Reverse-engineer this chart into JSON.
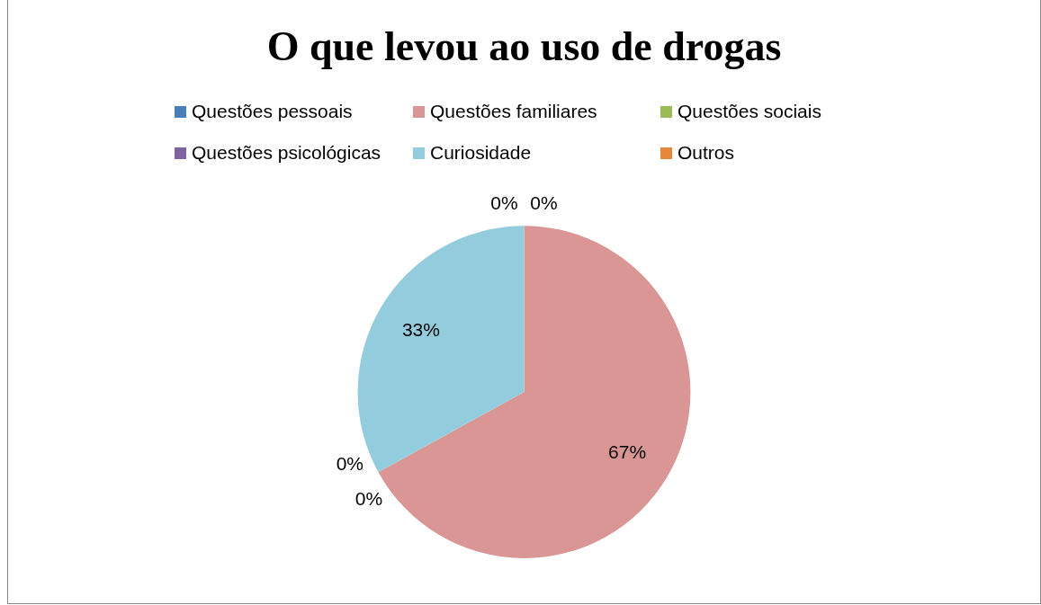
{
  "chart_data": {
    "type": "pie",
    "title": "O que levou ao uso de drogas",
    "categories": [
      "Questões pessoais",
      "Questões familiares",
      "Questões sociais",
      "Questões psicológicas",
      "Curiosidade",
      "Outros"
    ],
    "values": [
      0,
      67,
      0,
      0,
      33,
      0
    ],
    "colors": [
      "#4a7ebb",
      "#da9694",
      "#9bbb59",
      "#8064a2",
      "#93cddd",
      "#e6883c"
    ],
    "value_labels": [
      "0%",
      "67%",
      "0%",
      "0%",
      "33%",
      "0%"
    ],
    "legend": "top"
  }
}
